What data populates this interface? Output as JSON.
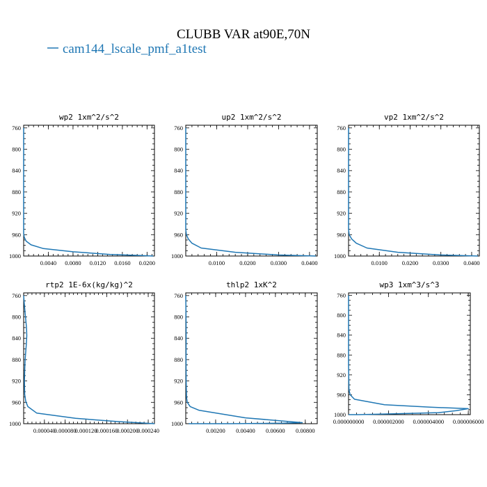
{
  "figure": {
    "title": "CLUBB VAR at90E,70N",
    "legend": [
      {
        "label": "cam144_lscale_pmf_a1test",
        "color": "#1f77b4"
      }
    ]
  },
  "chart_data": [
    {
      "type": "line",
      "title": "wp2  1xm^2/s^2",
      "xlim": [
        0,
        0.0212
      ],
      "ylim": [
        1000,
        755
      ],
      "yticks": [
        "760",
        "800",
        "840",
        "880",
        "920",
        "960",
        "1000"
      ],
      "xticks": [
        {
          "v": 0.004,
          "label": "0.0040"
        },
        {
          "v": 0.008,
          "label": "0.0080"
        },
        {
          "v": 0.012,
          "label": "0.0120"
        },
        {
          "v": 0.016,
          "label": "0.0160"
        },
        {
          "v": 0.02,
          "label": "0.0200"
        }
      ],
      "series": [
        {
          "color": "#1f77b4",
          "x": [
            0.0,
            0.0,
            0.0,
            0.0,
            0.0,
            0.0,
            0.0,
            0.0,
            0.0001,
            0.0004,
            0.0012,
            0.0032,
            0.008,
            0.014,
            0.019,
            0.021
          ],
          "y": [
            760,
            800,
            840,
            880,
            920,
            940,
            950,
            958,
            965,
            972,
            979,
            986,
            992,
            997,
            999,
            1000
          ]
        }
      ]
    },
    {
      "type": "line",
      "title": "up2  1xm^2/s^2",
      "xlim": [
        0,
        0.0425
      ],
      "ylim": [
        1000,
        755
      ],
      "yticks": [
        "760",
        "800",
        "840",
        "880",
        "920",
        "960",
        "1000"
      ],
      "xticks": [
        {
          "v": 0.01,
          "label": "0.0100"
        },
        {
          "v": 0.02,
          "label": "0.0200"
        },
        {
          "v": 0.03,
          "label": "0.0300"
        },
        {
          "v": 0.04,
          "label": "0.0400"
        }
      ],
      "series": [
        {
          "color": "#1f77b4",
          "x": [
            0.0,
            0.0,
            0.0,
            0.0,
            0.0,
            0.0,
            0.0002,
            0.0008,
            0.002,
            0.005,
            0.016,
            0.03,
            0.042
          ],
          "y": [
            760,
            800,
            840,
            880,
            920,
            950,
            960,
            968,
            976,
            985,
            993,
            998,
            1000
          ]
        }
      ]
    },
    {
      "type": "line",
      "title": "vp2  1xm^2/s^2",
      "xlim": [
        0,
        0.0425
      ],
      "ylim": [
        1000,
        755
      ],
      "yticks": [
        "760",
        "800",
        "840",
        "880",
        "920",
        "960",
        "1000"
      ],
      "xticks": [
        {
          "v": 0.01,
          "label": "0.0100"
        },
        {
          "v": 0.02,
          "label": "0.0200"
        },
        {
          "v": 0.03,
          "label": "0.0300"
        },
        {
          "v": 0.04,
          "label": "0.0400"
        }
      ],
      "series": [
        {
          "color": "#1f77b4",
          "x": [
            0.0,
            0.0,
            0.0,
            0.0,
            0.0,
            0.0,
            0.0002,
            0.001,
            0.0025,
            0.006,
            0.016,
            0.03,
            0.042
          ],
          "y": [
            760,
            800,
            840,
            880,
            920,
            950,
            960,
            968,
            976,
            985,
            993,
            998,
            1000
          ]
        }
      ]
    },
    {
      "type": "line",
      "title": "rtp2  1E-6x(kg/kg)^2",
      "xlim": [
        0,
        0.000252
      ],
      "ylim": [
        1000,
        755
      ],
      "yticks": [
        "760",
        "800",
        "840",
        "880",
        "920",
        "960",
        "1000"
      ],
      "xticks": [
        {
          "v": 4e-05,
          "label": "0.000040"
        },
        {
          "v": 8e-05,
          "label": "0.000080"
        },
        {
          "v": 0.00012,
          "label": "0.000120"
        },
        {
          "v": 0.00016,
          "label": "0.000160"
        },
        {
          "v": 0.0002,
          "label": "0.000200"
        },
        {
          "v": 0.00024,
          "label": "0.000240"
        }
      ],
      "series": [
        {
          "color": "#1f77b4",
          "x": [
            0.0,
            1.2e-06,
            2.5e-06,
            4e-06,
            5.5e-06,
            6e-06,
            5.2e-06,
            4e-06,
            2.8e-06,
            2e-06,
            1.5e-06,
            2e-06,
            4e-06,
            8e-06,
            2.5e-05,
            0.0001,
            0.00018,
            0.000252
          ],
          "y": [
            760,
            775,
            790,
            805,
            820,
            835,
            850,
            865,
            880,
            900,
            920,
            945,
            958,
            968,
            980,
            990,
            996,
            1000
          ]
        }
      ]
    },
    {
      "type": "line",
      "title": "thlp2  1xK^2",
      "xlim": [
        0,
        0.0088
      ],
      "ylim": [
        1000,
        755
      ],
      "yticks": [
        "760",
        "800",
        "840",
        "880",
        "920",
        "960",
        "1000"
      ],
      "xticks": [
        {
          "v": 0.002,
          "label": "0.00200"
        },
        {
          "v": 0.004,
          "label": "0.00400"
        },
        {
          "v": 0.006,
          "label": "0.00600"
        },
        {
          "v": 0.008,
          "label": "0.00800"
        }
      ],
      "series": [
        {
          "color": "#1f77b4",
          "x": [
            0.0,
            2e-05,
            3e-05,
            2e-05,
            3e-05,
            5e-05,
            0.0001,
            0.0003,
            0.0009,
            0.004,
            0.0078,
            0.0065,
            0.003,
            0.0002
          ],
          "y": [
            760,
            800,
            840,
            880,
            920,
            950,
            960,
            968,
            975,
            989,
            998,
            999,
            1000,
            1000
          ]
        }
      ]
    },
    {
      "type": "line",
      "title": "wp3  1xm^3/s^3",
      "xlim": [
        0,
        6.1e-06
      ],
      "ylim": [
        1000,
        755
      ],
      "yticks": [
        "760",
        "800",
        "840",
        "880",
        "920",
        "960",
        "1000"
      ],
      "xticks": [
        {
          "v": 0.0,
          "label": "0.000000000"
        },
        {
          "v": 2e-06,
          "label": "0.000002000"
        },
        {
          "v": 4e-06,
          "label": "0.000004000"
        },
        {
          "v": 6e-06,
          "label": "0.000006000"
        }
      ],
      "series": [
        {
          "color": "#1f77b4",
          "x": [
            0.0,
            0.0,
            0.0,
            2e-08,
            8e-08,
            3e-07,
            1.8e-06,
            4.1e-06,
            6e-06,
            5.4e-06,
            4.5e-06,
            2.5e-06,
            5e-07,
            0.0
          ],
          "y": [
            760,
            800,
            900,
            950,
            960,
            969,
            980,
            985,
            988,
            992,
            996,
            998,
            1000,
            1000
          ]
        }
      ]
    }
  ]
}
